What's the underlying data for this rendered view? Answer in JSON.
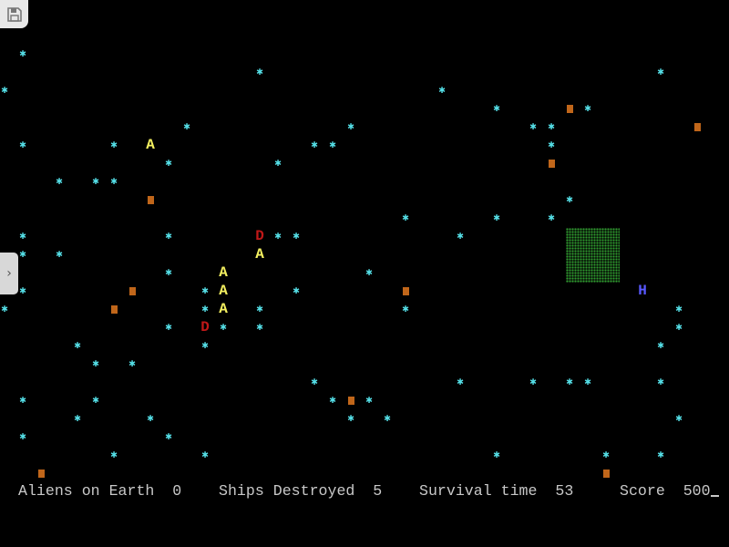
{
  "board": {
    "cell_size_note_free": true,
    "stars": [
      [
        2,
        2
      ],
      [
        28,
        3
      ],
      [
        72,
        3
      ],
      [
        0,
        4
      ],
      [
        48,
        4
      ],
      [
        54,
        5
      ],
      [
        64,
        5
      ],
      [
        20,
        6
      ],
      [
        38,
        6
      ],
      [
        58,
        6
      ],
      [
        60,
        6
      ],
      [
        2,
        7
      ],
      [
        12,
        7
      ],
      [
        34,
        7
      ],
      [
        36,
        7
      ],
      [
        60,
        7
      ],
      [
        18,
        8
      ],
      [
        30,
        8
      ],
      [
        6,
        9
      ],
      [
        10,
        9
      ],
      [
        12,
        9
      ],
      [
        62,
        10
      ],
      [
        44,
        11
      ],
      [
        54,
        11
      ],
      [
        60,
        11
      ],
      [
        2,
        12
      ],
      [
        18,
        12
      ],
      [
        30,
        12
      ],
      [
        32,
        12
      ],
      [
        50,
        12
      ],
      [
        2,
        13
      ],
      [
        6,
        13
      ],
      [
        18,
        14
      ],
      [
        40,
        14
      ],
      [
        2,
        15
      ],
      [
        22,
        15
      ],
      [
        32,
        15
      ],
      [
        0,
        16
      ],
      [
        22,
        16
      ],
      [
        28,
        16
      ],
      [
        44,
        16
      ],
      [
        74,
        16
      ],
      [
        18,
        17
      ],
      [
        24,
        17
      ],
      [
        28,
        17
      ],
      [
        74,
        17
      ],
      [
        8,
        18
      ],
      [
        22,
        18
      ],
      [
        72,
        18
      ],
      [
        10,
        19
      ],
      [
        14,
        19
      ],
      [
        34,
        20
      ],
      [
        50,
        20
      ],
      [
        58,
        20
      ],
      [
        62,
        20
      ],
      [
        64,
        20
      ],
      [
        72,
        20
      ],
      [
        2,
        21
      ],
      [
        10,
        21
      ],
      [
        36,
        21
      ],
      [
        40,
        21
      ],
      [
        8,
        22
      ],
      [
        16,
        22
      ],
      [
        38,
        22
      ],
      [
        42,
        22
      ],
      [
        74,
        22
      ],
      [
        2,
        23
      ],
      [
        18,
        23
      ],
      [
        12,
        24
      ],
      [
        22,
        24
      ],
      [
        54,
        24
      ],
      [
        66,
        24
      ],
      [
        72,
        24
      ]
    ],
    "crates": [
      [
        62,
        5
      ],
      [
        76,
        6
      ],
      [
        60,
        8
      ],
      [
        16,
        10
      ],
      [
        14,
        15
      ],
      [
        44,
        15
      ],
      [
        12,
        16
      ],
      [
        38,
        21
      ],
      [
        4,
        25
      ],
      [
        66,
        25
      ]
    ],
    "aliens": {
      "glyph": "A",
      "cells": [
        [
          16,
          7
        ],
        [
          28,
          13
        ],
        [
          24,
          14
        ],
        [
          24,
          15
        ],
        [
          24,
          16
        ]
      ]
    },
    "destroyers": {
      "glyph": "D",
      "cells": [
        [
          28,
          12
        ],
        [
          22,
          17
        ]
      ]
    },
    "human": {
      "glyph": "H",
      "cell": [
        70,
        15
      ]
    },
    "colors": {
      "star": "#55e0e8",
      "alien": "#f4f060",
      "destroyer": "#c01818",
      "human": "#5858ff",
      "crate": "#c0661a",
      "field": "#2e9a2e",
      "text": "#c8c8c8"
    }
  },
  "status": {
    "aliens_label": "Aliens on Earth",
    "aliens_value": "0",
    "ships_label": "Ships Destroyed",
    "ships_value": "5",
    "time_label": "Survival time",
    "time_value": "53",
    "score_label": "Score",
    "score_value": "500"
  },
  "overlay": {
    "save_icon": "floppy-disk-icon",
    "toggle_icon": "chevron-right-icon",
    "toggle_glyph": "›"
  }
}
